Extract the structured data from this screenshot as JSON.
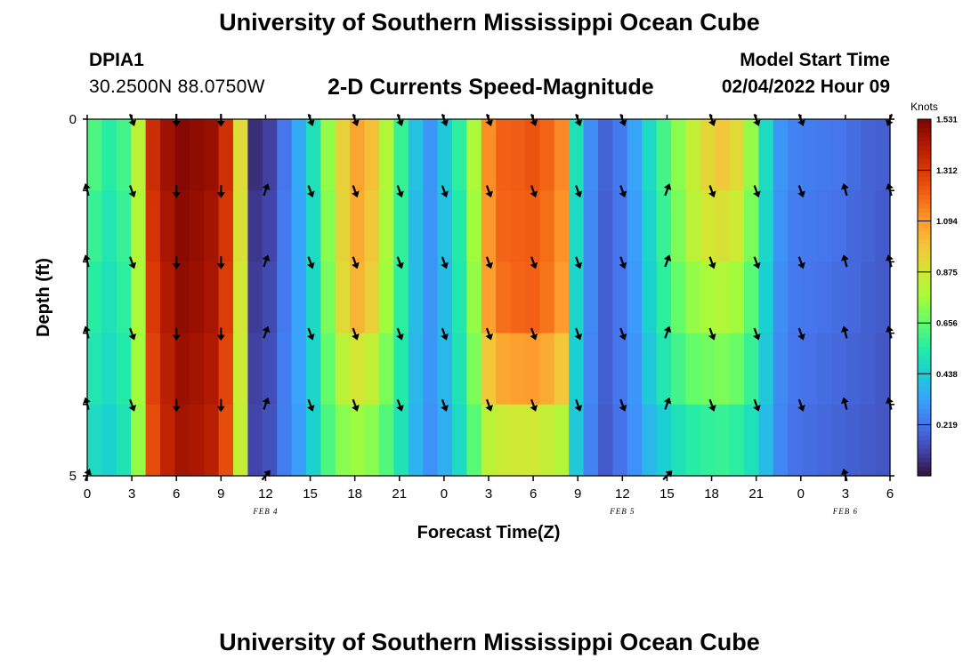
{
  "header": {
    "title": "University of Southern Mississippi Ocean Cube",
    "station_id": "DPIA1",
    "coordinates": "30.2500N  88.0750W",
    "subtitle": "2-D Currents Speed-Magnitude",
    "model_start_label": "Model Start Time",
    "model_start_value": "02/04/2022 Hour 09"
  },
  "footer": {
    "title": "University of Southern Mississippi Ocean Cube"
  },
  "chart_data": {
    "type": "heatmap",
    "title": "2-D Currents Speed-Magnitude",
    "xlabel": "Forecast Time(Z)",
    "ylabel": "Depth (ft)",
    "x_tick_labels": [
      "0",
      "3",
      "6",
      "9",
      "12",
      "15",
      "18",
      "21",
      "0",
      "3",
      "6",
      "9",
      "12",
      "15",
      "18",
      "21",
      "0",
      "3",
      "6"
    ],
    "x_range_hours": [
      0,
      54
    ],
    "date_labels": [
      {
        "text": "FEB 4",
        "hour": 12
      },
      {
        "text": "FEB 5",
        "hour": 36
      },
      {
        "text": "FEB 6",
        "hour": 51
      }
    ],
    "y_range": [
      0,
      5
    ],
    "y_tick_labels": [
      "0",
      "5"
    ],
    "depth_levels": 5,
    "colorbar": {
      "unit": "Knots",
      "min": 0,
      "max": 1.531,
      "ticks": [
        "1.531",
        "1.312",
        "1.094",
        "0.875",
        "0.656",
        "0.438",
        "0.219"
      ],
      "colors": [
        "#30123b",
        "#4145ab",
        "#4675ed",
        "#39a2fc",
        "#1bcfd4",
        "#24eca6",
        "#61fc6c",
        "#a4fc3b",
        "#d1e834",
        "#f3c63a",
        "#fe9b2d",
        "#f36315",
        "#d93806",
        "#b11901",
        "#7a0402"
      ]
    },
    "time_hours": [
      0,
      1,
      2,
      3,
      4,
      5,
      6,
      7,
      8,
      9,
      10,
      11,
      12,
      13,
      14,
      15,
      16,
      17,
      18,
      19,
      20,
      21,
      22,
      23,
      24,
      25,
      26,
      27,
      28,
      29,
      30,
      31,
      32,
      33,
      34,
      35,
      36,
      37,
      38,
      39,
      40,
      41,
      42,
      43,
      44,
      45,
      46,
      47,
      48,
      49,
      50,
      51,
      52,
      53,
      54
    ],
    "speed_knots": [
      [
        0.62,
        0.55,
        0.6,
        0.82,
        1.35,
        1.46,
        1.51,
        1.49,
        1.47,
        1.34,
        0.92,
        0.06,
        0.1,
        0.22,
        0.35,
        0.5,
        0.74,
        0.95,
        1.07,
        1.0,
        0.8,
        0.58,
        0.4,
        0.3,
        0.42,
        0.56,
        0.78,
        1.12,
        1.21,
        1.22,
        1.24,
        1.2,
        1.13,
        0.5,
        0.28,
        0.18,
        0.23,
        0.33,
        0.48,
        0.6,
        0.72,
        0.84,
        0.93,
        0.98,
        0.92,
        0.74,
        0.48,
        0.3,
        0.25,
        0.24,
        0.23,
        0.22,
        0.2,
        0.18,
        0.17
      ],
      [
        0.58,
        0.52,
        0.58,
        0.8,
        1.33,
        1.44,
        1.5,
        1.48,
        1.45,
        1.32,
        0.9,
        0.08,
        0.11,
        0.23,
        0.34,
        0.48,
        0.72,
        0.94,
        1.05,
        0.98,
        0.78,
        0.57,
        0.39,
        0.3,
        0.4,
        0.54,
        0.76,
        1.1,
        1.2,
        1.21,
        1.22,
        1.18,
        1.11,
        0.48,
        0.27,
        0.17,
        0.22,
        0.32,
        0.46,
        0.58,
        0.7,
        0.82,
        0.88,
        0.9,
        0.86,
        0.7,
        0.46,
        0.29,
        0.24,
        0.23,
        0.22,
        0.21,
        0.19,
        0.18,
        0.16
      ],
      [
        0.55,
        0.5,
        0.56,
        0.78,
        1.31,
        1.42,
        1.49,
        1.47,
        1.44,
        1.3,
        0.88,
        0.09,
        0.12,
        0.23,
        0.33,
        0.47,
        0.7,
        0.92,
        1.03,
        0.96,
        0.76,
        0.56,
        0.39,
        0.3,
        0.39,
        0.53,
        0.74,
        1.08,
        1.18,
        1.2,
        1.21,
        1.17,
        1.09,
        0.46,
        0.27,
        0.17,
        0.22,
        0.31,
        0.45,
        0.56,
        0.66,
        0.74,
        0.78,
        0.8,
        0.76,
        0.64,
        0.44,
        0.28,
        0.23,
        0.22,
        0.21,
        0.2,
        0.19,
        0.17,
        0.16
      ],
      [
        0.52,
        0.48,
        0.54,
        0.76,
        1.29,
        1.4,
        1.47,
        1.45,
        1.42,
        1.28,
        0.86,
        0.1,
        0.13,
        0.24,
        0.33,
        0.46,
        0.66,
        0.82,
        0.88,
        0.84,
        0.7,
        0.54,
        0.38,
        0.3,
        0.38,
        0.51,
        0.7,
        0.98,
        1.06,
        1.08,
        1.09,
        1.05,
        0.98,
        0.44,
        0.26,
        0.17,
        0.22,
        0.3,
        0.42,
        0.52,
        0.6,
        0.66,
        0.68,
        0.7,
        0.67,
        0.58,
        0.42,
        0.27,
        0.22,
        0.21,
        0.2,
        0.19,
        0.18,
        0.17,
        0.15
      ],
      [
        0.48,
        0.45,
        0.51,
        0.74,
        1.26,
        1.38,
        1.45,
        1.43,
        1.4,
        1.26,
        0.84,
        0.11,
        0.14,
        0.24,
        0.32,
        0.45,
        0.62,
        0.72,
        0.75,
        0.72,
        0.63,
        0.51,
        0.37,
        0.29,
        0.36,
        0.48,
        0.64,
        0.82,
        0.86,
        0.87,
        0.87,
        0.84,
        0.8,
        0.42,
        0.25,
        0.16,
        0.21,
        0.29,
        0.38,
        0.44,
        0.5,
        0.55,
        0.57,
        0.58,
        0.56,
        0.5,
        0.39,
        0.26,
        0.21,
        0.2,
        0.19,
        0.18,
        0.17,
        0.16,
        0.15
      ]
    ],
    "arrow_time_hours": [
      0,
      3,
      6,
      9,
      12,
      15,
      18,
      21,
      24,
      27,
      30,
      33,
      36,
      39,
      42,
      45,
      48,
      51,
      54
    ],
    "arrow_depth_levels": [
      0,
      1,
      2,
      3,
      4,
      5
    ],
    "arrow_direction_deg": [
      [
        null,
        160,
        180,
        180,
        null,
        160,
        160,
        160,
        160,
        160,
        160,
        160,
        160,
        null,
        160,
        160,
        160,
        null,
        200
      ],
      [
        345,
        160,
        180,
        180,
        20,
        160,
        160,
        160,
        160,
        160,
        160,
        160,
        160,
        20,
        160,
        160,
        160,
        345,
        345
      ],
      [
        345,
        160,
        180,
        180,
        20,
        160,
        160,
        160,
        160,
        160,
        160,
        160,
        160,
        20,
        160,
        160,
        160,
        345,
        345
      ],
      [
        345,
        160,
        180,
        180,
        20,
        160,
        160,
        160,
        160,
        160,
        160,
        160,
        160,
        20,
        160,
        160,
        160,
        345,
        345
      ],
      [
        345,
        160,
        180,
        180,
        20,
        160,
        160,
        160,
        160,
        160,
        160,
        160,
        160,
        20,
        160,
        160,
        160,
        345,
        345
      ],
      [
        20,
        null,
        null,
        null,
        40,
        null,
        null,
        null,
        null,
        null,
        null,
        null,
        null,
        45,
        null,
        null,
        null,
        345,
        null
      ]
    ]
  }
}
